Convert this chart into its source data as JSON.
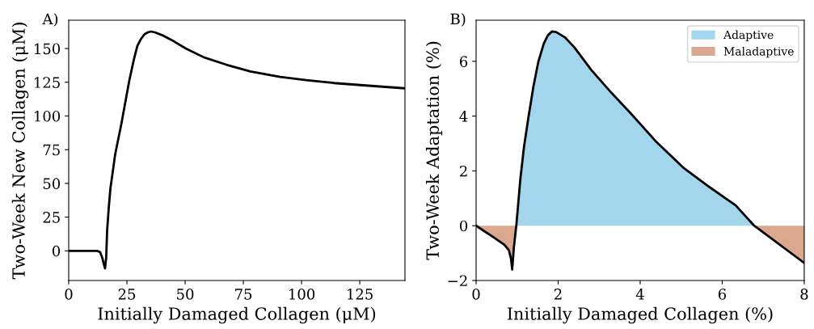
{
  "chart_data": [
    {
      "type": "line",
      "title": "A)",
      "xlabel": "Initially Damaged Collagen (μM)",
      "ylabel": "Two-Week New Collagen (μM)",
      "xlim": [
        0,
        144.4
      ],
      "ylim": [
        -22,
        171
      ],
      "xticks": [
        0,
        25,
        50,
        75,
        100,
        125
      ],
      "yticks": [
        0,
        25,
        50,
        75,
        100,
        125,
        150
      ],
      "grid": false,
      "legend": false,
      "series": [
        {
          "color": "#000000",
          "x": [
            0,
            12.2,
            13.5,
            14.4,
            15.1,
            15.6,
            16.1,
            16.5,
            17.2,
            17.9,
            20,
            22.6,
            24.5,
            26,
            28,
            29.5,
            31,
            32.5,
            34,
            35.3,
            37,
            40,
            45,
            50.3,
            58,
            67.7,
            78,
            90.8,
            102,
            113.9,
            130,
            144.4
          ],
          "values": [
            0,
            0,
            -1,
            -5,
            -10,
            -13,
            -5,
            15,
            32,
            46,
            72,
            94,
            112,
            126,
            142,
            152,
            157,
            160.5,
            162,
            162.6,
            162,
            160,
            155.5,
            150,
            143.5,
            138,
            133,
            129,
            126.5,
            124.4,
            122.3,
            120.5
          ]
        }
      ]
    },
    {
      "type": "line",
      "title": "B)",
      "xlabel": "Initially Damaged Collagen (%)",
      "ylabel": "Two-Week Adaptation (%)",
      "xlim": [
        0,
        8
      ],
      "ylim": [
        -2,
        7.5
      ],
      "xticks": [
        0,
        2,
        4,
        6,
        8
      ],
      "yticks": [
        -2,
        0,
        2,
        4,
        6
      ],
      "grid": false,
      "legend": "top right",
      "series": [
        {
          "type": "area",
          "name": "Adaptive",
          "color": "#a3d5ec",
          "x": [
            0.98,
            1.08,
            1.17,
            1.27,
            1.4,
            1.52,
            1.65,
            1.75,
            1.85,
            1.95,
            2.05,
            2.17,
            2.4,
            2.81,
            3.3,
            3.77,
            4.4,
            5.05,
            5.7,
            6.33,
            6.78
          ],
          "values": [
            0,
            1.72,
            2.9,
            3.9,
            5.1,
            6.0,
            6.65,
            6.95,
            7.09,
            7.07,
            6.98,
            6.87,
            6.5,
            5.68,
            4.85,
            4.1,
            3.05,
            2.12,
            1.4,
            0.74,
            0
          ]
        },
        {
          "type": "area",
          "name": "Maladaptive",
          "color": "#dba78e",
          "x": [
            0,
            0.45,
            0.69,
            0.8,
            0.85,
            0.88,
            0.92,
            0.98,
            3,
            6.78,
            8
          ],
          "values": [
            0,
            -0.45,
            -0.7,
            -0.9,
            -1.2,
            -1.6,
            -0.8,
            0,
            null,
            0,
            -1.36
          ]
        },
        {
          "color": "#000000",
          "x": [
            0,
            0.45,
            0.69,
            0.8,
            0.85,
            0.88,
            0.92,
            0.98,
            1.08,
            1.17,
            1.27,
            1.4,
            1.52,
            1.65,
            1.75,
            1.85,
            1.95,
            2.05,
            2.17,
            2.4,
            2.81,
            3.3,
            3.77,
            4.4,
            5.05,
            5.7,
            6.33,
            6.78,
            8
          ],
          "values": [
            0,
            -0.45,
            -0.7,
            -0.9,
            -1.2,
            -1.6,
            -0.8,
            0,
            1.72,
            2.9,
            3.9,
            5.1,
            6.0,
            6.65,
            6.95,
            7.09,
            7.07,
            6.98,
            6.87,
            6.5,
            5.68,
            4.85,
            4.1,
            3.05,
            2.12,
            1.4,
            0.74,
            0,
            -1.36
          ]
        }
      ]
    }
  ]
}
